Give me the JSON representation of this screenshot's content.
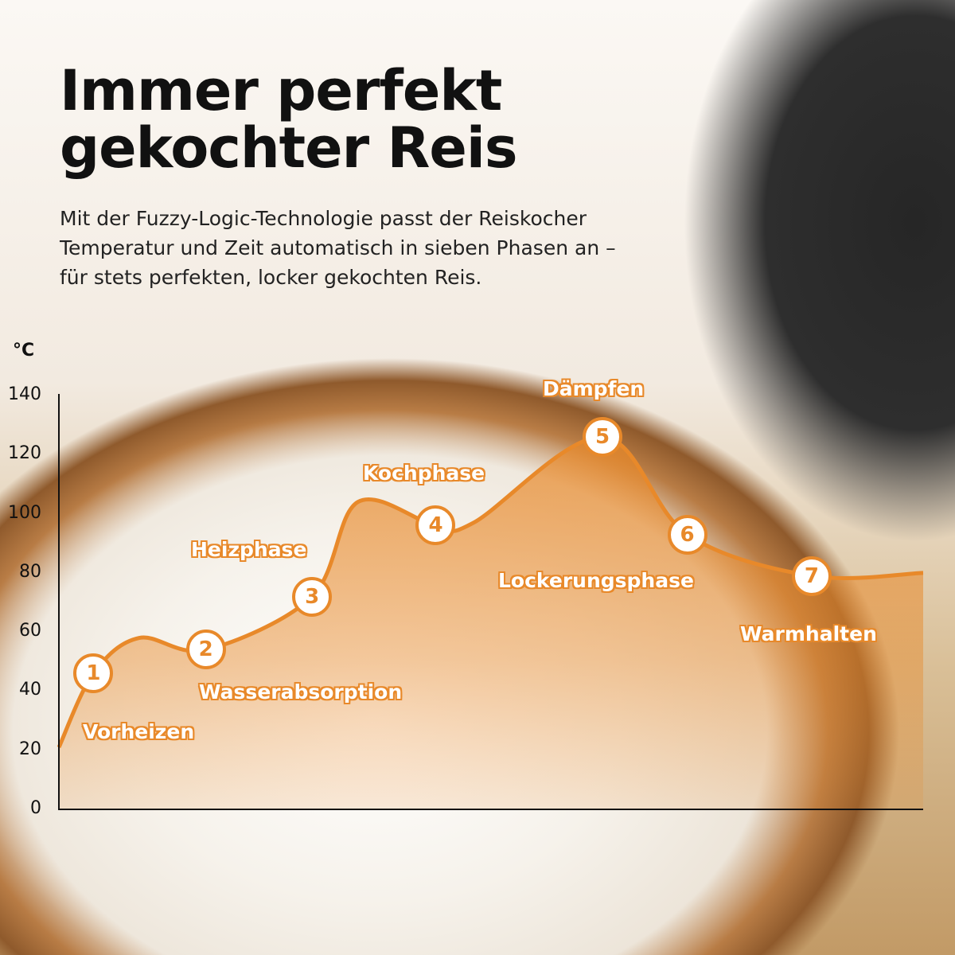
{
  "header": {
    "title_line1": "Immer perfekt",
    "title_line2": "gekochter Reis",
    "subtitle": "Mit der Fuzzy-Logic-Technologie passt der Reiskocher Temperatur und Zeit automatisch in sieben Phasen an – für stets perfekten, locker gekochten Reis."
  },
  "colors": {
    "accent": "#e8892a",
    "text": "#111111"
  },
  "chart_data": {
    "type": "area",
    "title": "",
    "xlabel": "",
    "ylabel": "°C",
    "ylim": [
      0,
      140
    ],
    "yticks": [
      "0",
      "20",
      "40",
      "60",
      "80",
      "100",
      "120",
      "140"
    ],
    "grid": false,
    "x_ticks_shown": false,
    "series": [
      {
        "x": [
          0,
          4,
          9.3,
          17,
          29.3,
          34.6,
          43.6,
          48,
          62.9,
          72.7,
          87.1,
          100
        ],
        "y": [
          21,
          46,
          58,
          54,
          72,
          104,
          96,
          97,
          126,
          93,
          79,
          80
        ]
      }
    ],
    "phases": [
      {
        "number": "1",
        "label": "Vorheizen",
        "x": 4,
        "y": 46
      },
      {
        "number": "2",
        "label": "Wasserabsorption",
        "x": 17,
        "y": 54
      },
      {
        "number": "3",
        "label": "Heizphase",
        "x": 29.3,
        "y": 72
      },
      {
        "number": "4",
        "label": "Kochphase",
        "x": 43.6,
        "y": 96
      },
      {
        "number": "5",
        "label": "Dämpfen",
        "x": 62.9,
        "y": 126
      },
      {
        "number": "6",
        "label": "Lockerungsphase",
        "x": 72.7,
        "y": 93
      },
      {
        "number": "7",
        "label": "Warmhalten",
        "x": 87.1,
        "y": 79
      }
    ]
  }
}
